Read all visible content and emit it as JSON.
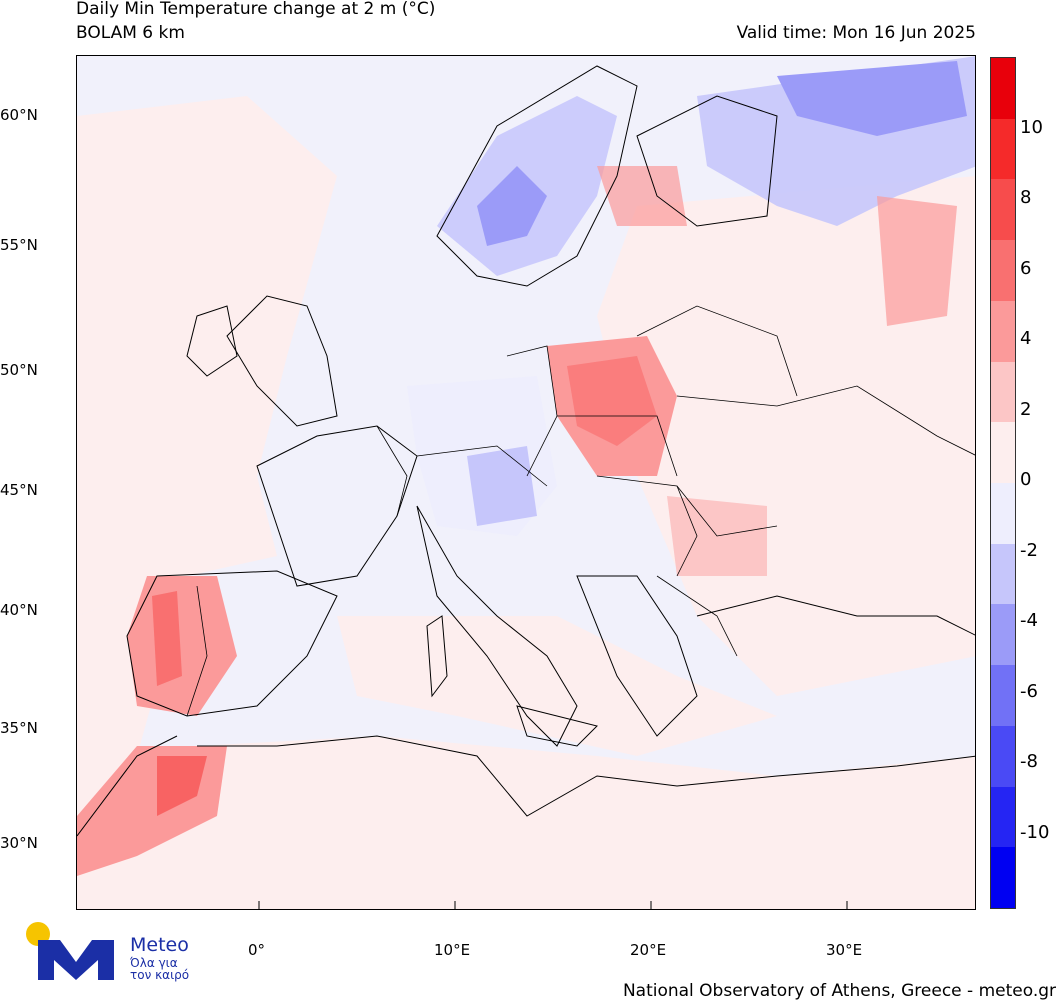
{
  "header": {
    "title": "Daily Min Temperature change at 2 m (°C)",
    "model": "BOLAM 6 km",
    "valid_time": "Valid time: Mon 16 Jun 2025"
  },
  "map": {
    "lat_labels": [
      "60°N",
      "55°N",
      "50°N",
      "45°N",
      "40°N",
      "35°N",
      "30°N"
    ],
    "lon_labels": [
      "0°",
      "10°E",
      "20°E",
      "30°E"
    ]
  },
  "colorbar": {
    "labels": [
      "10",
      "8",
      "6",
      "4",
      "2",
      "0",
      "-2",
      "-4",
      "-6",
      "-8",
      "-10"
    ],
    "colors": [
      "#e8000b",
      "#f52a2a",
      "#f74c4c",
      "#f97070",
      "#fb9a9a",
      "#fcc6c6",
      "#fdeeee",
      "#eeeefd",
      "#c6c6fb",
      "#9b9bf8",
      "#7171f6",
      "#4a4af5",
      "#2525f3",
      "#0000f2"
    ]
  },
  "logo": {
    "name": "Meteo",
    "tagline_1": "Όλα για",
    "tagline_2": "τον καιρό",
    "colors": {
      "sun": "#f6c400",
      "mark": "#1b2fa6"
    }
  },
  "footer": "National Observatory of Athens, Greece - meteo.gr"
}
